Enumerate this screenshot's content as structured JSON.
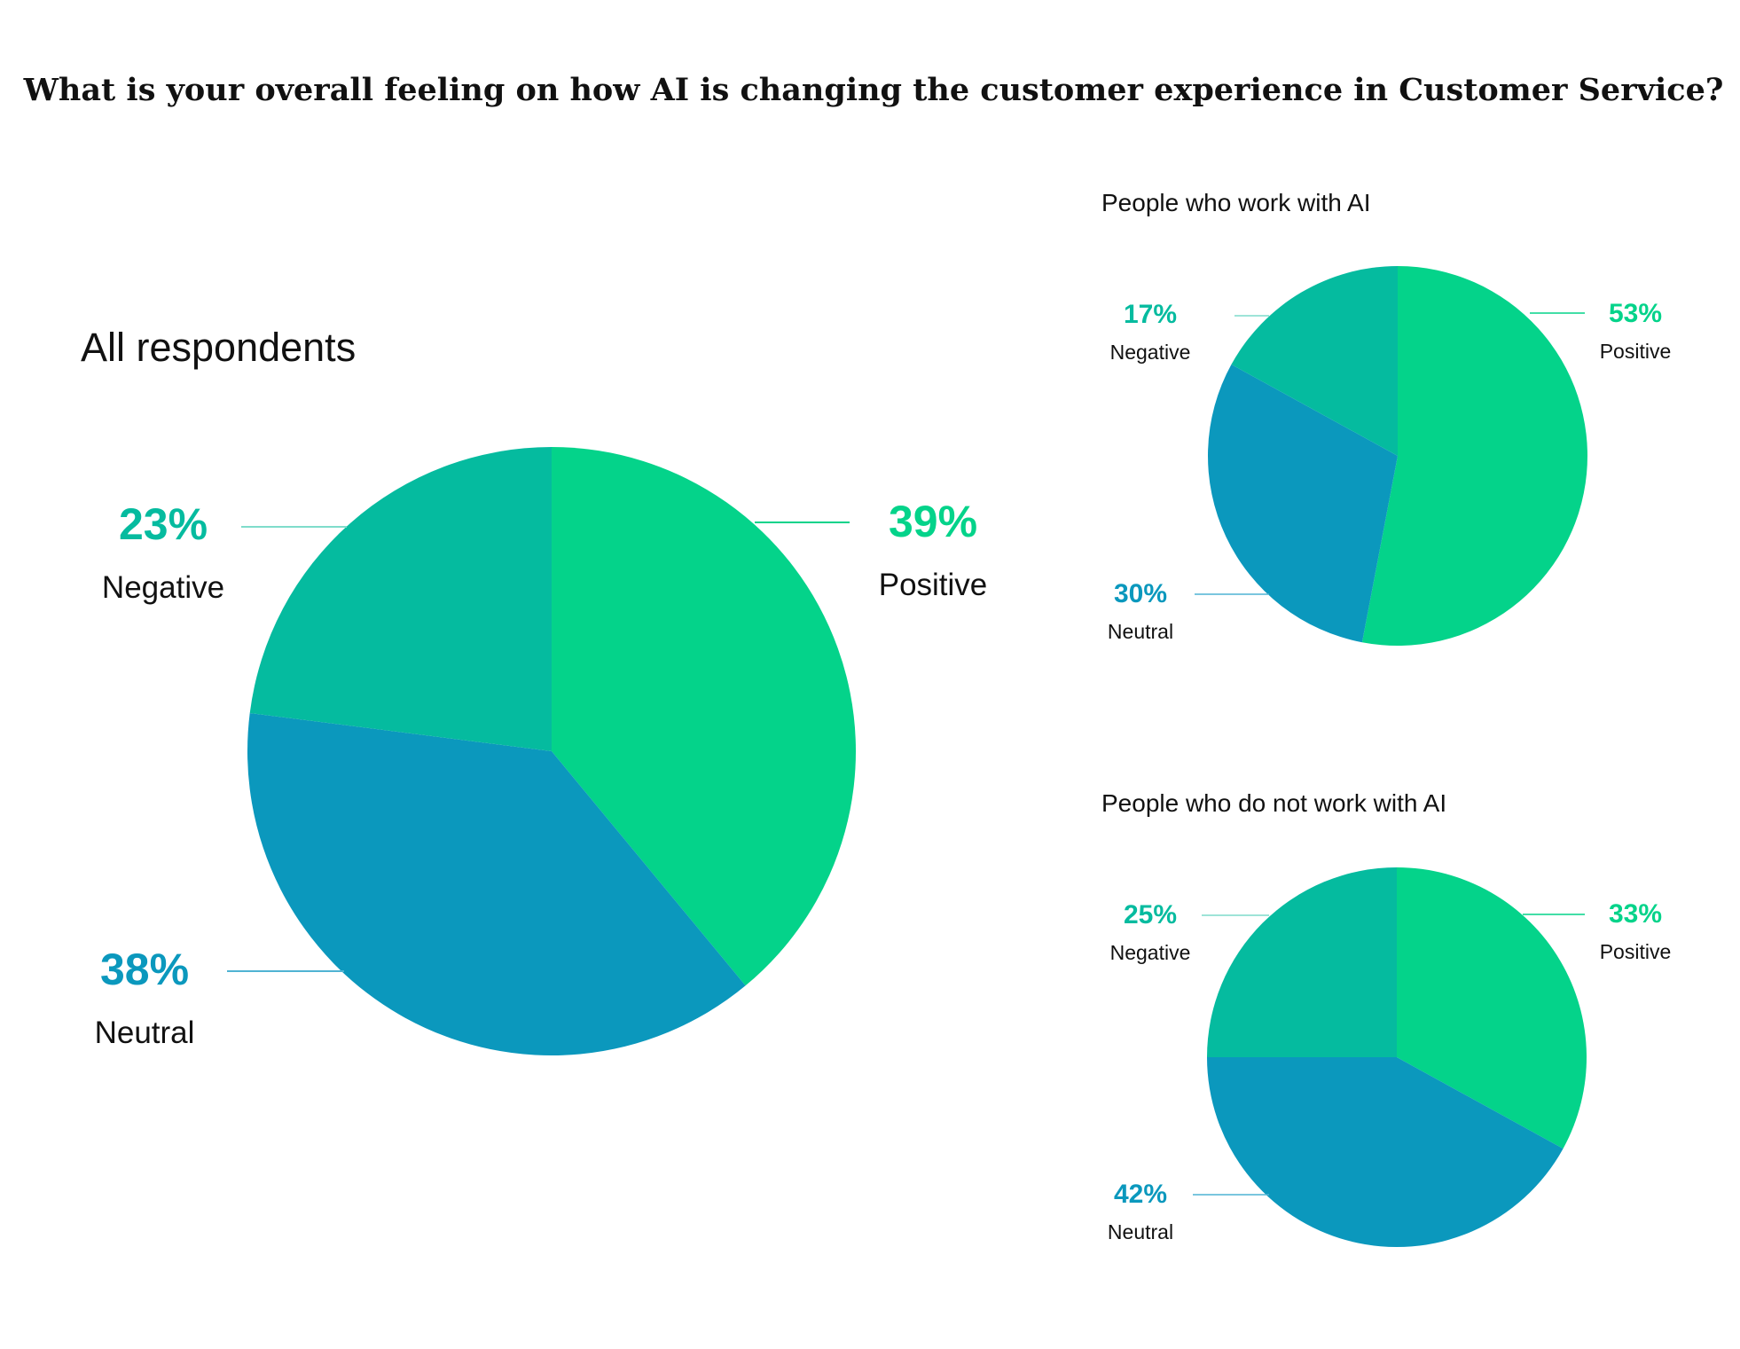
{
  "title": "What is your overall feeling on how AI is changing the customer experience in Customer Service?",
  "colors": {
    "Positive": "#04D38A",
    "Negative": "#05BB9F",
    "Neutral": "#0B98BD"
  },
  "chart_data": [
    {
      "type": "pie",
      "title": "All respondents",
      "slices": [
        {
          "label": "Positive",
          "value": 39,
          "text": "39%"
        },
        {
          "label": "Neutral",
          "value": 38,
          "text": "38%"
        },
        {
          "label": "Negative",
          "value": 23,
          "text": "23%"
        }
      ]
    },
    {
      "type": "pie",
      "title": "People who work with AI",
      "slices": [
        {
          "label": "Positive",
          "value": 53,
          "text": "53%"
        },
        {
          "label": "Neutral",
          "value": 30,
          "text": "30%"
        },
        {
          "label": "Negative",
          "value": 17,
          "text": "17%"
        }
      ]
    },
    {
      "type": "pie",
      "title": "People who do not work with AI",
      "slices": [
        {
          "label": "Positive",
          "value": 33,
          "text": "33%"
        },
        {
          "label": "Neutral",
          "value": 42,
          "text": "42%"
        },
        {
          "label": "Negative",
          "value": 25,
          "text": "25%"
        }
      ]
    }
  ]
}
